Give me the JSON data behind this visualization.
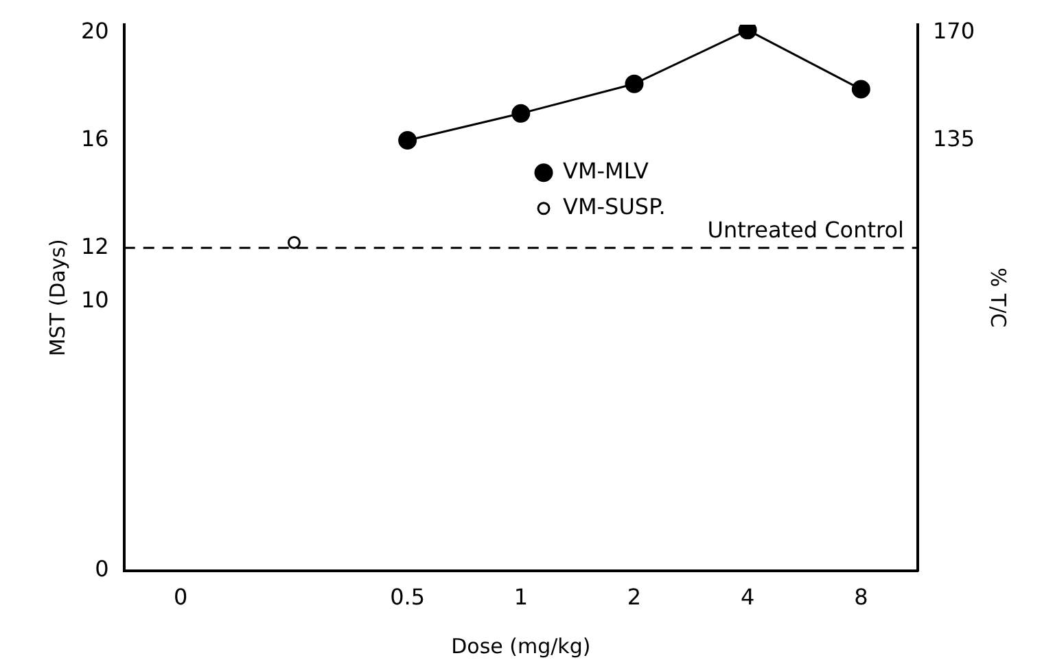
{
  "chart_data": {
    "type": "line",
    "xlabel": "Dose (mg/kg)",
    "ylabel": "MST (Days)",
    "y2label": "% T/C",
    "categories": [
      "0",
      null,
      "0.5",
      "1",
      "2",
      "4",
      "8"
    ],
    "series": [
      {
        "name": "VM-MLV",
        "color": "#000000",
        "values": [
          null,
          null,
          16,
          17,
          18.1,
          20.1,
          17.9
        ],
        "marker": "circle"
      },
      {
        "name": "VM-SUSP.",
        "color": "#000000",
        "type": "scatter",
        "values": [
          null,
          12.2,
          null,
          null,
          null,
          null,
          null
        ],
        "marker": "circle"
      }
    ],
    "ylim": [
      0,
      20.3
    ],
    "yticks": [
      0,
      10,
      12,
      16,
      20
    ],
    "y2lim": [
      -5,
      172.625
    ],
    "y2ticks": [
      135,
      170
    ],
    "ref_lines": [
      {
        "axis": "y",
        "value": 12,
        "label": "Untreated Control",
        "line_style": "dashed",
        "color": "#000000"
      }
    ],
    "grid": false,
    "legend": "center"
  }
}
